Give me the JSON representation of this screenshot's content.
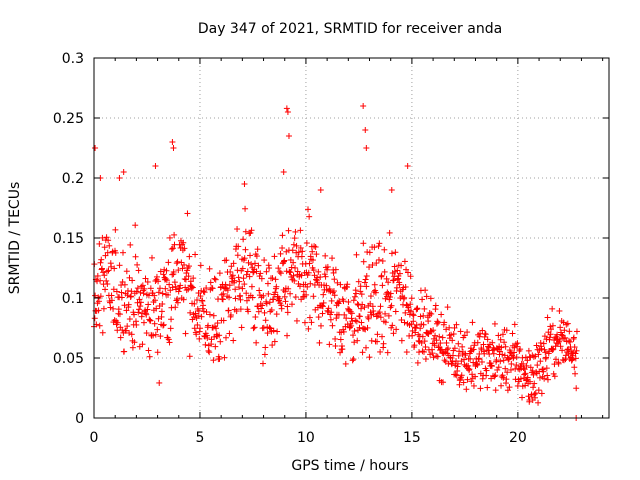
{
  "chart_data": {
    "type": "scatter",
    "title": "Day 347 of 2021, SRMTID for receiver anda",
    "xlabel": "GPS time / hours",
    "ylabel": "SRMTID / TECUs",
    "xlim": [
      0,
      24.3
    ],
    "ylim": [
      0,
      0.3
    ],
    "grid": true,
    "marker": "+",
    "color": "#ff0000",
    "x_ticks": [
      0,
      5,
      10,
      15,
      20
    ],
    "x_tick_labels": [
      "0",
      "5",
      "10",
      "15",
      "20"
    ],
    "y_ticks": [
      0,
      0.05,
      0.1,
      0.15,
      0.2,
      0.25,
      0.3
    ],
    "y_tick_labels": [
      "0",
      "0.05",
      "0.1",
      "0.15",
      "0.2",
      "0.25",
      "0.3"
    ],
    "series": [
      {
        "name": "SRMTID",
        "trend": [
          [
            0.0,
            0.11
          ],
          [
            0.5,
            0.115
          ],
          [
            1.0,
            0.105
          ],
          [
            1.5,
            0.1
          ],
          [
            2.0,
            0.095
          ],
          [
            2.5,
            0.09
          ],
          [
            3.0,
            0.09
          ],
          [
            3.5,
            0.11
          ],
          [
            4.0,
            0.12
          ],
          [
            4.5,
            0.11
          ],
          [
            5.0,
            0.09
          ],
          [
            5.5,
            0.08
          ],
          [
            6.0,
            0.085
          ],
          [
            6.5,
            0.11
          ],
          [
            7.0,
            0.125
          ],
          [
            7.5,
            0.115
          ],
          [
            8.0,
            0.09
          ],
          [
            8.5,
            0.09
          ],
          [
            9.0,
            0.11
          ],
          [
            9.5,
            0.12
          ],
          [
            10.0,
            0.115
          ],
          [
            10.5,
            0.11
          ],
          [
            11.0,
            0.105
          ],
          [
            11.5,
            0.09
          ],
          [
            12.0,
            0.085
          ],
          [
            12.5,
            0.09
          ],
          [
            13.0,
            0.1
          ],
          [
            13.5,
            0.095
          ],
          [
            14.0,
            0.1
          ],
          [
            14.5,
            0.11
          ],
          [
            15.0,
            0.085
          ],
          [
            15.5,
            0.075
          ],
          [
            16.0,
            0.07
          ],
          [
            16.5,
            0.06
          ],
          [
            17.0,
            0.055
          ],
          [
            17.5,
            0.05
          ],
          [
            18.0,
            0.05
          ],
          [
            18.5,
            0.05
          ],
          [
            19.0,
            0.05
          ],
          [
            19.5,
            0.05
          ],
          [
            20.0,
            0.045
          ],
          [
            20.5,
            0.035
          ],
          [
            21.0,
            0.04
          ],
          [
            21.5,
            0.06
          ],
          [
            22.0,
            0.065
          ],
          [
            22.5,
            0.06
          ],
          [
            22.8,
            0.055
          ]
        ],
        "outliers": [
          [
            0.05,
            0.225
          ],
          [
            0.3,
            0.2
          ],
          [
            1.2,
            0.2
          ],
          [
            1.4,
            0.205
          ],
          [
            2.9,
            0.21
          ],
          [
            3.7,
            0.23
          ],
          [
            3.75,
            0.225
          ],
          [
            7.1,
            0.195
          ],
          [
            8.95,
            0.205
          ],
          [
            9.1,
            0.258
          ],
          [
            9.15,
            0.255
          ],
          [
            9.2,
            0.235
          ],
          [
            10.7,
            0.19
          ],
          [
            12.7,
            0.26
          ],
          [
            12.8,
            0.24
          ],
          [
            12.85,
            0.225
          ],
          [
            14.05,
            0.19
          ],
          [
            14.8,
            0.21
          ],
          [
            20.55,
            0.015
          ],
          [
            20.7,
            0.015
          ],
          [
            22.75,
            0.0
          ]
        ]
      }
    ]
  }
}
